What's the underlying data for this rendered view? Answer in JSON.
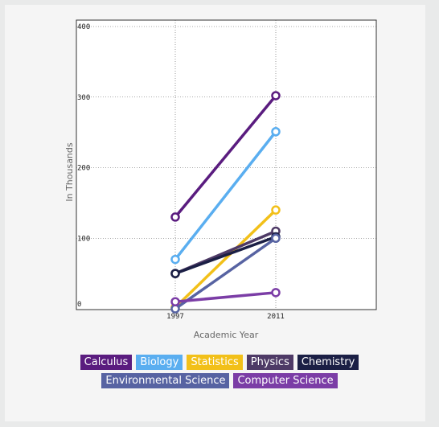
{
  "chart_data": {
    "type": "line",
    "title": "",
    "xlabel": "Academic Year",
    "ylabel": "In Thousands",
    "x": [
      "1997",
      "2011"
    ],
    "ylim": [
      0,
      400
    ],
    "yticks": [
      "0",
      "100",
      "200",
      "300",
      "400"
    ],
    "grid": true,
    "legend_position": "bottom",
    "series": [
      {
        "name": "Calculus",
        "values": [
          130,
          302
        ],
        "color": "#5a1c7f"
      },
      {
        "name": "Biology",
        "values": [
          70,
          251
        ],
        "color": "#5aaef0"
      },
      {
        "name": "Statistics",
        "values": [
          2,
          140
        ],
        "color": "#f2c019"
      },
      {
        "name": "Physics",
        "values": [
          50,
          110
        ],
        "color": "#4e3a66"
      },
      {
        "name": "Chemistry",
        "values": [
          50,
          102
        ],
        "color": "#1b1f45"
      },
      {
        "name": "Environmental Science",
        "values": [
          0,
          100
        ],
        "color": "#5763a2"
      },
      {
        "name": "Computer Science",
        "values": [
          10,
          23
        ],
        "color": "#7b3da6"
      }
    ]
  }
}
